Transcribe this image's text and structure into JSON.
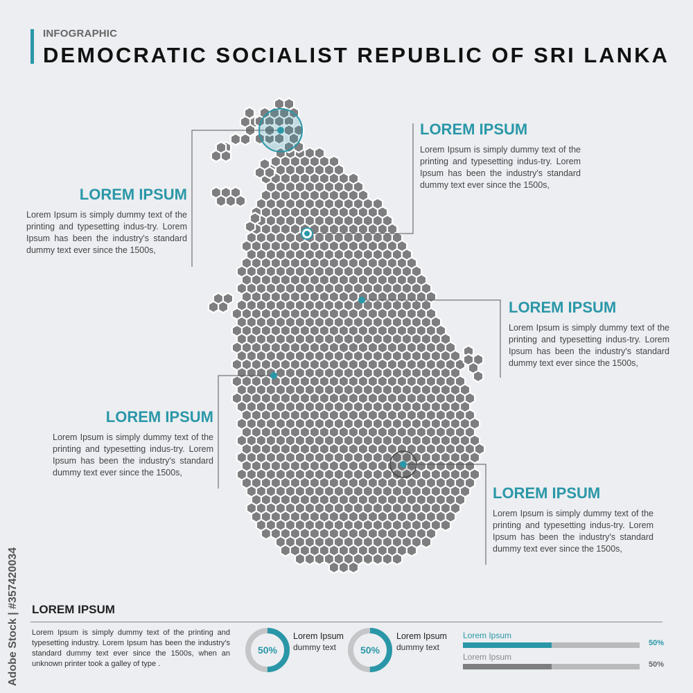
{
  "header": {
    "kicker": "INFOGRAPHIC",
    "title": "DEMOCRATIC SOCIALIST REPUBLIC OF SRI LANKA"
  },
  "colors": {
    "accent": "#2a97a8",
    "hex_fill": "#7e7e80",
    "background": "#eceef1"
  },
  "callouts": [
    {
      "heading": "LOREM IPSUM",
      "body": "Lorem Ipsum is simply dummy text of the printing and typesetting indus-try. Lorem Ipsum has been the industry's standard dummy text ever since the 1500s,"
    },
    {
      "heading": "LOREM IPSUM",
      "body": "Lorem Ipsum is simply dummy text of the printing and typesetting indus-try. Lorem Ipsum has been the industry's standard dummy text ever since the 1500s,"
    },
    {
      "heading": "LOREM IPSUM",
      "body": "Lorem Ipsum is simply dummy text of the printing and typesetting indus-try. Lorem Ipsum has been the industry's standard dummy text ever since the 1500s,"
    },
    {
      "heading": "LOREM IPSUM",
      "body": "Lorem Ipsum is simply dummy text of the printing and typesetting indus-try. Lorem Ipsum has been the industry's standard dummy text ever since the 1500s,"
    },
    {
      "heading": "LOREM IPSUM",
      "body": "Lorem Ipsum is simply dummy text of the printing and typesetting indus-try. Lorem Ipsum has been the industry's standard dummy text ever since the 1500s,"
    }
  ],
  "bottom": {
    "title": "LOREM IPSUM",
    "text": "Lorem Ipsum is simply dummy text of the printing and typesetting industry. Lorem Ipsum has been the industry's standard dummy text ever since the 1500s, when an unknown printer took a galley of type .",
    "donuts": [
      {
        "percent": 50,
        "value_label": "50%",
        "label1": "Lorem Ipsum",
        "label2": "dummy text"
      },
      {
        "percent": 50,
        "value_label": "50%",
        "label1": "Lorem Ipsum",
        "label2": "dummy text"
      }
    ],
    "bars": [
      {
        "label": "Lorem Ipsum",
        "percent": 50,
        "value_label": "50%",
        "color": "#2a97a8"
      },
      {
        "label": "Lorem Ipsum",
        "percent": 50,
        "value_label": "50%",
        "color": "#7e7e80"
      }
    ]
  },
  "side_id": "Adobe Stock | #357420034"
}
